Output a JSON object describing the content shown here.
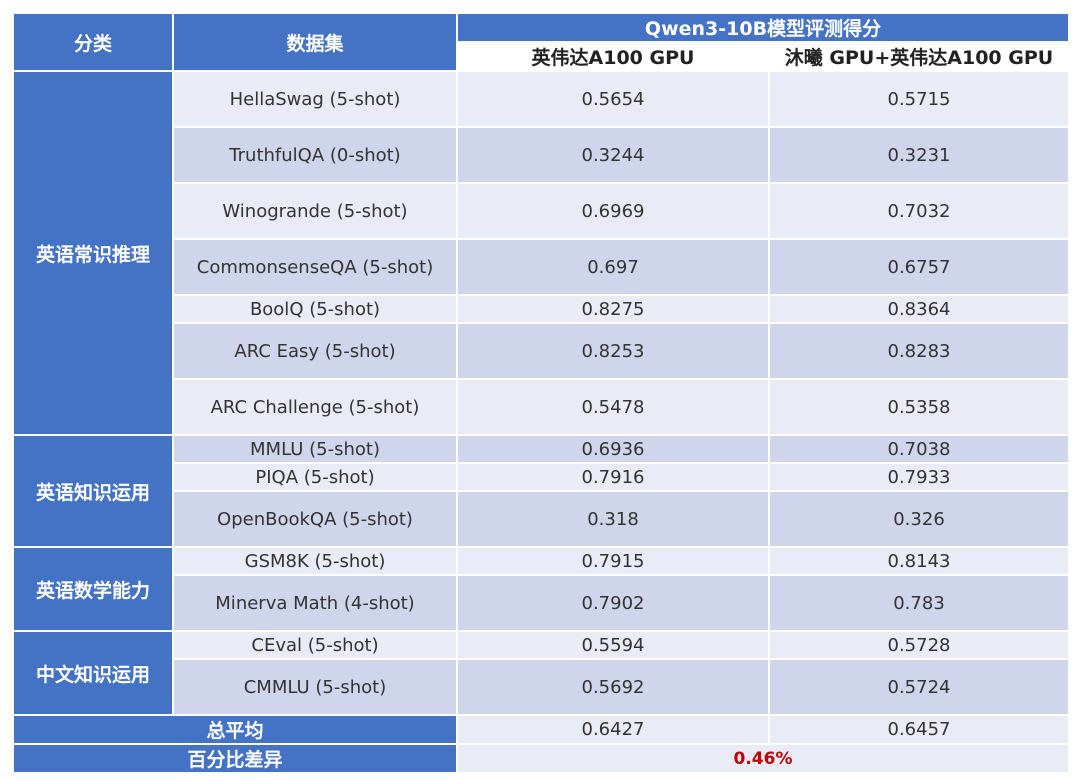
{
  "header": {
    "category": "分类",
    "dataset": "数据集",
    "model_title": "Qwen3-10B模型评测得分",
    "col_a": "英伟达A100 GPU",
    "col_b": "沐曦 GPU+英伟达A100 GPU"
  },
  "groups": [
    {
      "name": "英语常识推理",
      "rows": [
        {
          "dataset": "HellaSwag (5-shot)",
          "a": "0.5654",
          "b": "0.5715"
        },
        {
          "dataset": "TruthfulQA (0-shot)",
          "a": "0.3244",
          "b": "0.3231"
        },
        {
          "dataset": "Winogrande (5-shot)",
          "a": "0.6969",
          "b": "0.7032"
        },
        {
          "dataset": "CommonsenseQA (5-shot)",
          "a": "0.697",
          "b": "0.6757"
        },
        {
          "dataset": "BoolQ (5-shot)",
          "a": "0.8275",
          "b": "0.8364"
        },
        {
          "dataset": "ARC Easy (5-shot)",
          "a": "0.8253",
          "b": "0.8283"
        },
        {
          "dataset": "ARC Challenge (5-shot)",
          "a": "0.5478",
          "b": "0.5358"
        }
      ]
    },
    {
      "name": "英语知识运用",
      "rows": [
        {
          "dataset": "MMLU (5-shot)",
          "a": "0.6936",
          "b": "0.7038"
        },
        {
          "dataset": "PIQA (5-shot)",
          "a": "0.7916",
          "b": "0.7933"
        },
        {
          "dataset": "OpenBookQA (5-shot)",
          "a": "0.318",
          "b": "0.326"
        }
      ]
    },
    {
      "name": "英语数学能力",
      "rows": [
        {
          "dataset": "GSM8K (5-shot)",
          "a": "0.7915",
          "b": "0.8143"
        },
        {
          "dataset": "Minerva Math (4-shot)",
          "a": "0.7902",
          "b": "0.783"
        }
      ]
    },
    {
      "name": "中文知识运用",
      "rows": [
        {
          "dataset": "CEval (5-shot)",
          "a": "0.5594",
          "b": "0.5728"
        },
        {
          "dataset": "CMMLU (5-shot)",
          "a": "0.5692",
          "b": "0.5724"
        }
      ]
    }
  ],
  "footer": {
    "avg_label": "总平均",
    "avg_a": "0.6427",
    "avg_b": "0.6457",
    "diff_label": "百分比差异",
    "diff_value": "0.46%"
  },
  "colors": {
    "header_blue": "#4472c4",
    "row_light": "#e9ecf6",
    "row_dark": "#cfd6ec",
    "diff_red": "#c00000"
  }
}
